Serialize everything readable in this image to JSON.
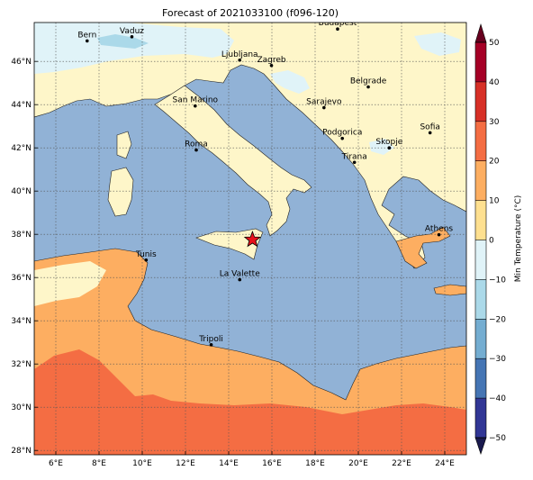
{
  "title": "Forecast of 2021033100 (f096-120)",
  "colorbar": {
    "label": "Min Temperature (°C)",
    "ticks": [
      "50",
      "40",
      "30",
      "20",
      "10",
      "0",
      "−10",
      "−20",
      "−30",
      "−40",
      "−50"
    ],
    "colors": [
      "#a50026",
      "#d73027",
      "#f46d43",
      "#fdae61",
      "#fee090",
      "#e0f3f8",
      "#abd9e9",
      "#74add1",
      "#4575b4",
      "#313695"
    ]
  },
  "axes": {
    "x_ticks": [
      "6°E",
      "8°E",
      "10°E",
      "12°E",
      "14°E",
      "16°E",
      "18°E",
      "20°E",
      "22°E",
      "24°E"
    ],
    "y_ticks": [
      "46°N",
      "44°N",
      "42°N",
      "40°N",
      "38°N",
      "36°N",
      "34°N",
      "32°N",
      "30°N",
      "28°N"
    ],
    "lon_range": [
      5,
      25
    ],
    "lat_range": [
      27.8,
      47.8
    ]
  },
  "palette": {
    "sea": "#91b2d6",
    "cool_land": "#fef6c9",
    "cold": "#e0f3f8",
    "colder": "#abd9e9",
    "warm": "#fdae61",
    "hot": "#f46d43",
    "marker": "#e8121b"
  },
  "cities": [
    {
      "name": "Bern",
      "lon": 7.45,
      "lat": 46.95
    },
    {
      "name": "Vaduz",
      "lon": 9.52,
      "lat": 47.14
    },
    {
      "name": "Budapest",
      "lon": 19.04,
      "lat": 47.5
    },
    {
      "name": "Ljubljana",
      "lon": 14.51,
      "lat": 46.06
    },
    {
      "name": "Zagreb",
      "lon": 15.98,
      "lat": 45.81
    },
    {
      "name": "Belgrade",
      "lon": 20.46,
      "lat": 44.82
    },
    {
      "name": "San Marino",
      "lon": 12.45,
      "lat": 43.94
    },
    {
      "name": "Sarajevo",
      "lon": 18.41,
      "lat": 43.86
    },
    {
      "name": "Sofia",
      "lon": 23.32,
      "lat": 42.7
    },
    {
      "name": "Podgorica",
      "lon": 19.26,
      "lat": 42.44
    },
    {
      "name": "Skopje",
      "lon": 21.43,
      "lat": 42.0
    },
    {
      "name": "Roma",
      "lon": 12.5,
      "lat": 41.9
    },
    {
      "name": "Tirana",
      "lon": 19.82,
      "lat": 41.33
    },
    {
      "name": "Athens",
      "lon": 23.73,
      "lat": 37.98
    },
    {
      "name": "Tunis",
      "lon": 10.18,
      "lat": 36.81
    },
    {
      "name": "La Valette",
      "lon": 14.51,
      "lat": 35.9
    },
    {
      "name": "Tripoli",
      "lon": 13.19,
      "lat": 32.89
    }
  ],
  "marker": {
    "lon": 15.1,
    "lat": 37.75
  }
}
